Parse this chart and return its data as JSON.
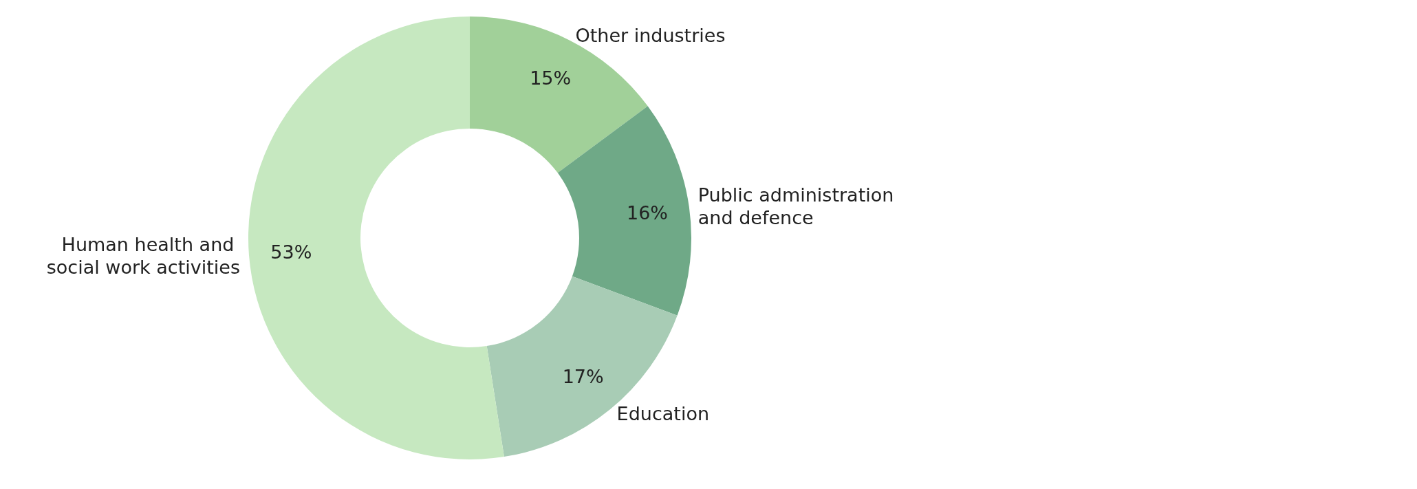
{
  "chart_data": {
    "type": "donut",
    "categories": [
      "Other industries",
      "Public administration and defence",
      "Education",
      "Human health and social work activities"
    ],
    "values": [
      15,
      16,
      17,
      53
    ],
    "value_labels": [
      "15%",
      "16%",
      "17%",
      "53%"
    ],
    "colors": [
      "#a1d099",
      "#6fa987",
      "#a8ccb5",
      "#c6e8c0"
    ],
    "legend": false
  }
}
